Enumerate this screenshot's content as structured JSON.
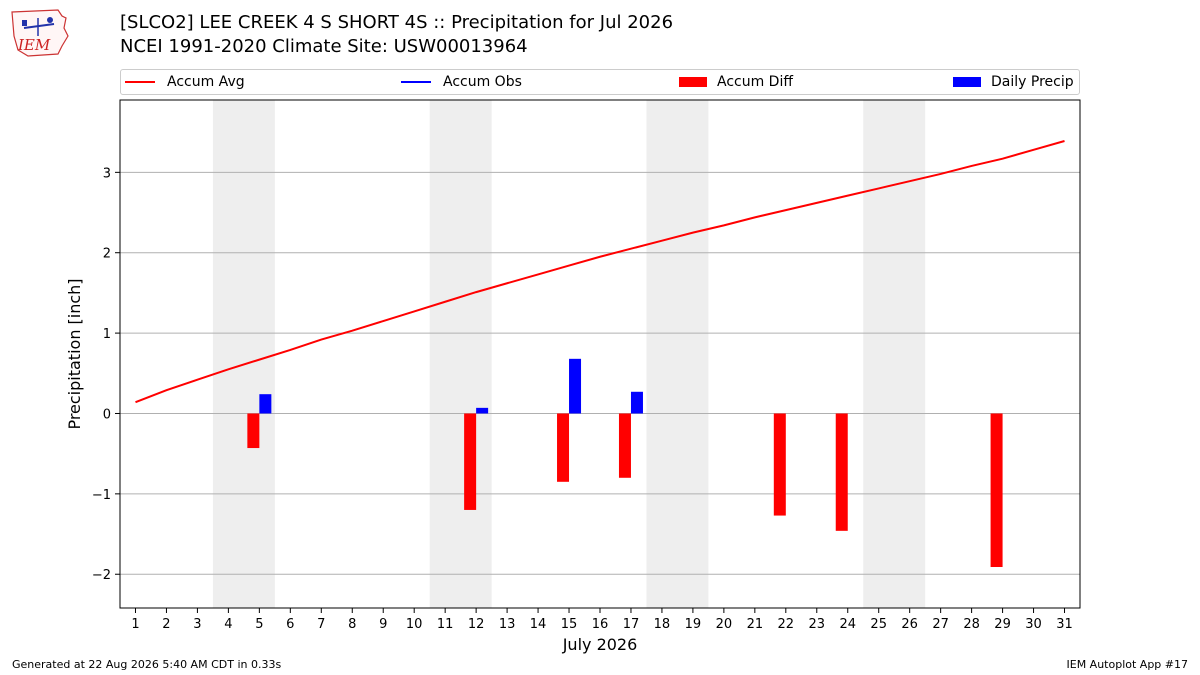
{
  "header": {
    "title_line1": "[SLCO2] LEE CREEK 4 S SHORT 4S :: Precipitation for Jul 2026",
    "title_line2": "NCEI 1991-2020 Climate Site: USW00013964",
    "logo_text": "IEM"
  },
  "footer": {
    "generated": "Generated at 22 Aug 2026 5:40 AM CDT in 0.33s",
    "app": "IEM Autoplot App #17"
  },
  "legend": {
    "placement": "top",
    "items": [
      {
        "label": "Accum Avg",
        "kind": "line",
        "color": "#ff0000"
      },
      {
        "label": "Accum Obs",
        "kind": "line",
        "color": "#0000ff"
      },
      {
        "label": "Accum Diff",
        "kind": "box",
        "color": "#ff0000"
      },
      {
        "label": "Daily Precip",
        "kind": "box",
        "color": "#0000ff"
      }
    ]
  },
  "chart_data": {
    "type": "bar",
    "xlabel": "July 2026",
    "ylabel": "Precipitation [inch]",
    "xlim": [
      0.5,
      31.5
    ],
    "ylim": [
      -2.42,
      3.9
    ],
    "y_ticks": [
      -2,
      -1,
      0,
      1,
      2,
      3
    ],
    "y_tick_labels": [
      "−2",
      "−1",
      "0",
      "1",
      "2",
      "3"
    ],
    "x_ticks": [
      1,
      2,
      3,
      4,
      5,
      6,
      7,
      8,
      9,
      10,
      11,
      12,
      13,
      14,
      15,
      16,
      17,
      18,
      19,
      20,
      21,
      22,
      23,
      24,
      25,
      26,
      27,
      28,
      29,
      30,
      31
    ],
    "x_tick_labels": [
      "1",
      "2",
      "3",
      "4",
      "5",
      "6",
      "7",
      "8",
      "9",
      "10",
      "11",
      "12",
      "13",
      "14",
      "15",
      "16",
      "17",
      "18",
      "19",
      "20",
      "21",
      "22",
      "23",
      "24",
      "25",
      "26",
      "27",
      "28",
      "29",
      "30",
      "31"
    ],
    "grid": "horizontal",
    "weekend_shading": [
      [
        3.5,
        5.5
      ],
      [
        10.5,
        12.5
      ],
      [
        17.5,
        19.5
      ],
      [
        24.5,
        26.5
      ]
    ],
    "colors": {
      "avg": "#ff0000",
      "obs": "#0000ff",
      "diff": "#ff0000",
      "daily": "#0000ff",
      "shade": "#eeeeee",
      "grid": "#b0b0b0"
    },
    "series": [
      {
        "name": "Accum Avg",
        "kind": "line",
        "x": [
          1,
          2,
          3,
          4,
          5,
          6,
          7,
          8,
          9,
          10,
          11,
          12,
          13,
          14,
          15,
          16,
          17,
          18,
          19,
          20,
          21,
          22,
          23,
          24,
          25,
          26,
          27,
          28,
          29,
          30,
          31
        ],
        "values": [
          0.14,
          0.29,
          0.42,
          0.55,
          0.67,
          0.79,
          0.92,
          1.03,
          1.15,
          1.27,
          1.39,
          1.51,
          1.62,
          1.73,
          1.84,
          1.95,
          2.05,
          2.15,
          2.25,
          2.34,
          2.44,
          2.53,
          2.62,
          2.71,
          2.8,
          2.89,
          2.98,
          3.08,
          3.17,
          3.28,
          3.39
        ]
      },
      {
        "name": "Accum Diff",
        "kind": "bar",
        "x": [
          5,
          12,
          15,
          17,
          22,
          24,
          29
        ],
        "values": [
          -0.43,
          -1.2,
          -0.85,
          -0.8,
          -1.27,
          -1.46,
          -1.91
        ]
      },
      {
        "name": "Daily Precip",
        "kind": "bar",
        "x": [
          5,
          12,
          15,
          17
        ],
        "values": [
          0.24,
          0.07,
          0.68,
          0.27
        ]
      }
    ]
  }
}
